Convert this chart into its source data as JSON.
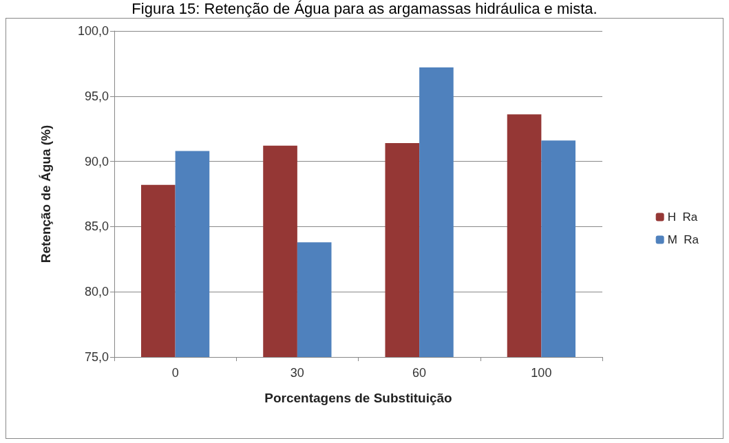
{
  "chart_data": {
    "type": "bar",
    "title": "Figura 15: Retenção de Água para as argamassas hidráulica e mista.",
    "xlabel": "Porcentagens de Substituição",
    "ylabel": "Retenção de Água (%)",
    "categories": [
      "0",
      "30",
      "60",
      "100"
    ],
    "series": [
      {
        "name": "H  Ra",
        "color": "#953735",
        "values": [
          88.2,
          91.2,
          91.4,
          93.6
        ]
      },
      {
        "name": "M  Ra",
        "color": "#4f81bd",
        "values": [
          90.8,
          83.8,
          97.2,
          91.6
        ]
      }
    ],
    "ylim": [
      75,
      100
    ],
    "yticks": [
      {
        "value": 75,
        "label": "75,0"
      },
      {
        "value": 80,
        "label": "80,0"
      },
      {
        "value": 85,
        "label": "85,0"
      },
      {
        "value": 90,
        "label": "90,0"
      },
      {
        "value": 95,
        "label": "95,0"
      },
      {
        "value": 100,
        "label": "100,0"
      }
    ],
    "grid": "y",
    "legend": "right"
  }
}
